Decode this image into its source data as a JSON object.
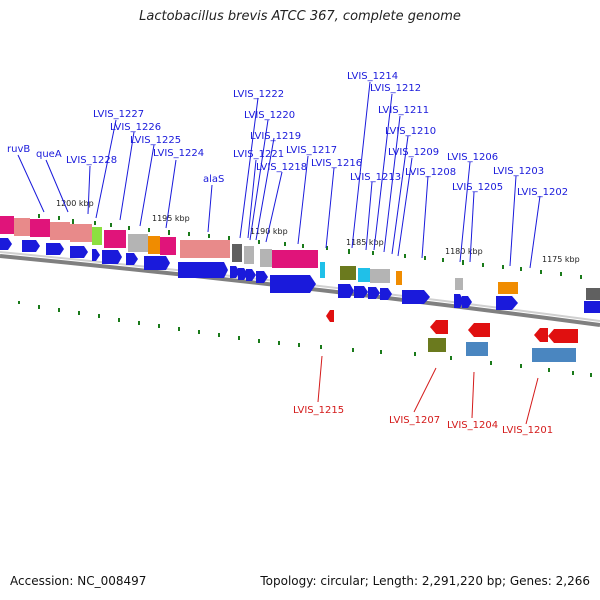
{
  "title": "Lactobacillus brevis ATCC 367, complete genome",
  "accession": "Accession: NC_008497",
  "summary": "Topology: circular; Length: 2,291,220 bp; Genes: 2,266",
  "kbp_labels": [
    "1200 kbp",
    "1195 kbp",
    "1190 kbp",
    "1185 kbp",
    "1180 kbp",
    "1175 kbp"
  ],
  "forward_labels": [
    "ruvB",
    "queA",
    "LVIS_1228",
    "LVIS_1227",
    "LVIS_1226",
    "LVIS_1225",
    "LVIS_1224",
    "alaS",
    "LVIS_1222",
    "LVIS_1220",
    "LVIS_1219",
    "LVIS_1221",
    "LVIS_1218",
    "LVIS_1217",
    "LVIS_1216",
    "LVIS_1214",
    "LVIS_1212",
    "LVIS_1211",
    "LVIS_1210",
    "LVIS_1213",
    "LVIS_1209",
    "LVIS_1208",
    "LVIS_1206",
    "LVIS_1205",
    "LVIS_1203",
    "LVIS_1202"
  ],
  "reverse_labels": [
    "LVIS_1215",
    "LVIS_1207",
    "LVIS_1204",
    "LVIS_1201"
  ],
  "colors": {
    "forward_gene": "#1a1adb",
    "reverse_gene": "#e01010",
    "backbone": "#808080",
    "tick": "#1a7a1a",
    "pink": "#e0147a",
    "salmon": "#e88a8a",
    "olive": "#6b7a1e",
    "steelblue": "#4a86c0",
    "orange": "#f08c00",
    "gray": "#b4b4b4",
    "cyan": "#20c0e8",
    "lime": "#8ce040",
    "darkgray": "#606060"
  }
}
